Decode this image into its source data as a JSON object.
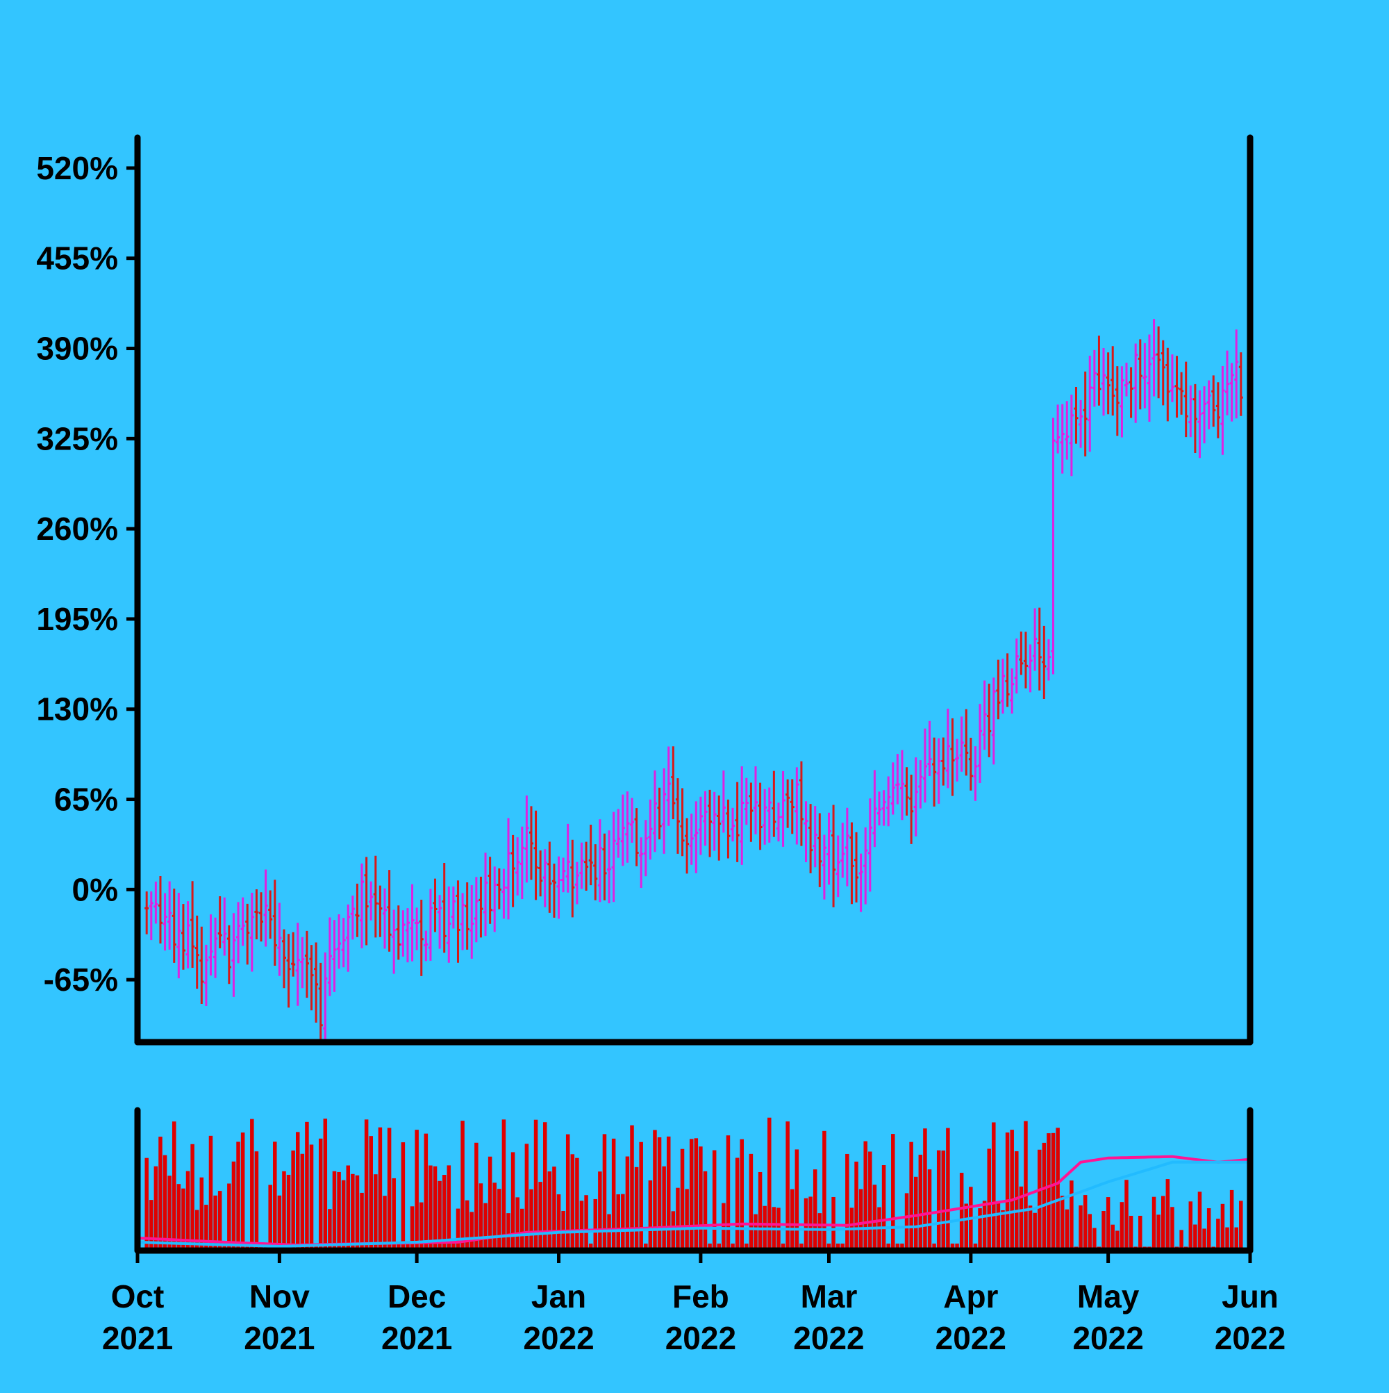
{
  "chart_data": {
    "type": "ohlc",
    "background": "#33c5ff",
    "colors": {
      "up": "#e020e0",
      "down": "#d81818",
      "volume": "#e00000",
      "ma_short": "#ff1493",
      "ma_long": "#22bbff",
      "axis": "#000000"
    },
    "price_panel": {
      "y_ticks": [
        -65,
        0,
        65,
        130,
        195,
        260,
        325,
        390,
        455,
        520
      ],
      "y_tick_labels": [
        "-65%",
        "0%",
        "65%",
        "130%",
        "195%",
        "260%",
        "325%",
        "390%",
        "455%",
        "520%"
      ],
      "ylim": [
        -110,
        542
      ],
      "anchors": [
        [
          "2021-10-01",
          -10
        ],
        [
          "2021-10-08",
          -20
        ],
        [
          "2021-10-15",
          -55
        ],
        [
          "2021-10-22",
          -40
        ],
        [
          "2021-10-29",
          -25
        ],
        [
          "2021-11-05",
          -50
        ],
        [
          "2021-11-10",
          -85
        ],
        [
          "2021-11-15",
          -25
        ],
        [
          "2021-11-20",
          -5
        ],
        [
          "2021-11-27",
          -30
        ],
        [
          "2021-12-06",
          -25
        ],
        [
          "2021-12-13",
          -15
        ],
        [
          "2021-12-20",
          10
        ],
        [
          "2021-12-25",
          35
        ],
        [
          "2021-12-30",
          10
        ],
        [
          "2022-01-06",
          15
        ],
        [
          "2022-01-13",
          30
        ],
        [
          "2022-01-20",
          40
        ],
        [
          "2022-01-25",
          70
        ],
        [
          "2022-01-29",
          35
        ],
        [
          "2022-02-03",
          45
        ],
        [
          "2022-02-10",
          55
        ],
        [
          "2022-02-17",
          50
        ],
        [
          "2022-02-21",
          70
        ],
        [
          "2022-02-26",
          25
        ],
        [
          "2022-03-03",
          30
        ],
        [
          "2022-03-08",
          20
        ],
        [
          "2022-03-12",
          60
        ],
        [
          "2022-03-18",
          65
        ],
        [
          "2022-03-24",
          85
        ],
        [
          "2022-04-01",
          95
        ],
        [
          "2022-04-05",
          120
        ],
        [
          "2022-04-10",
          160
        ],
        [
          "2022-04-15",
          180
        ],
        [
          "2022-04-18",
          160
        ],
        [
          "2022-04-19",
          320
        ],
        [
          "2022-04-23",
          330
        ],
        [
          "2022-04-28",
          360
        ],
        [
          "2022-05-03",
          360
        ],
        [
          "2022-05-08",
          382
        ],
        [
          "2022-05-14",
          360
        ],
        [
          "2022-05-20",
          345
        ],
        [
          "2022-05-24",
          345
        ],
        [
          "2022-05-28",
          365
        ],
        [
          "2022-06-01",
          370
        ]
      ]
    },
    "volume_panel": {
      "bars": "daily",
      "moving_averages": [
        {
          "color": "ma_short",
          "anchors": [
            [
              "2021-10-01",
              0.06
            ],
            [
              "2021-10-20",
              0.03
            ],
            [
              "2021-11-05",
              0.01
            ],
            [
              "2021-11-20",
              0.02
            ],
            [
              "2021-12-10",
              0.03
            ],
            [
              "2021-12-25",
              0.1
            ],
            [
              "2022-01-20",
              0.13
            ],
            [
              "2022-02-10",
              0.16
            ],
            [
              "2022-03-05",
              0.15
            ],
            [
              "2022-03-20",
              0.22
            ],
            [
              "2022-04-10",
              0.33
            ],
            [
              "2022-04-20",
              0.45
            ],
            [
              "2022-04-25",
              0.6
            ],
            [
              "2022-05-01",
              0.63
            ],
            [
              "2022-05-15",
              0.64
            ],
            [
              "2022-05-25",
              0.6
            ],
            [
              "2022-06-01",
              0.62
            ]
          ]
        },
        {
          "color": "ma_long",
          "anchors": [
            [
              "2021-10-01",
              0.03
            ],
            [
              "2021-11-01",
              0.0
            ],
            [
              "2021-12-01",
              0.03
            ],
            [
              "2022-01-01",
              0.1
            ],
            [
              "2022-02-01",
              0.13
            ],
            [
              "2022-03-01",
              0.12
            ],
            [
              "2022-03-20",
              0.14
            ],
            [
              "2022-04-15",
              0.27
            ],
            [
              "2022-05-01",
              0.46
            ],
            [
              "2022-05-15",
              0.6
            ],
            [
              "2022-06-01",
              0.6
            ]
          ]
        }
      ]
    },
    "x_ticks": [
      {
        "date": "2021-10-01",
        "month": "Oct",
        "year": "2021"
      },
      {
        "date": "2021-11-01",
        "month": "Nov",
        "year": "2021"
      },
      {
        "date": "2021-12-01",
        "month": "Dec",
        "year": "2021"
      },
      {
        "date": "2022-01-01",
        "month": "Jan",
        "year": "2022"
      },
      {
        "date": "2022-02-01",
        "month": "Feb",
        "year": "2022"
      },
      {
        "date": "2022-03-01",
        "month": "Mar",
        "year": "2022"
      },
      {
        "date": "2022-04-01",
        "month": "Apr",
        "year": "2022"
      },
      {
        "date": "2022-05-01",
        "month": "May",
        "year": "2022"
      },
      {
        "date": "2022-06-01",
        "month": "Jun",
        "year": "2022"
      }
    ],
    "x_range": [
      "2021-10-01",
      "2022-06-01"
    ]
  }
}
